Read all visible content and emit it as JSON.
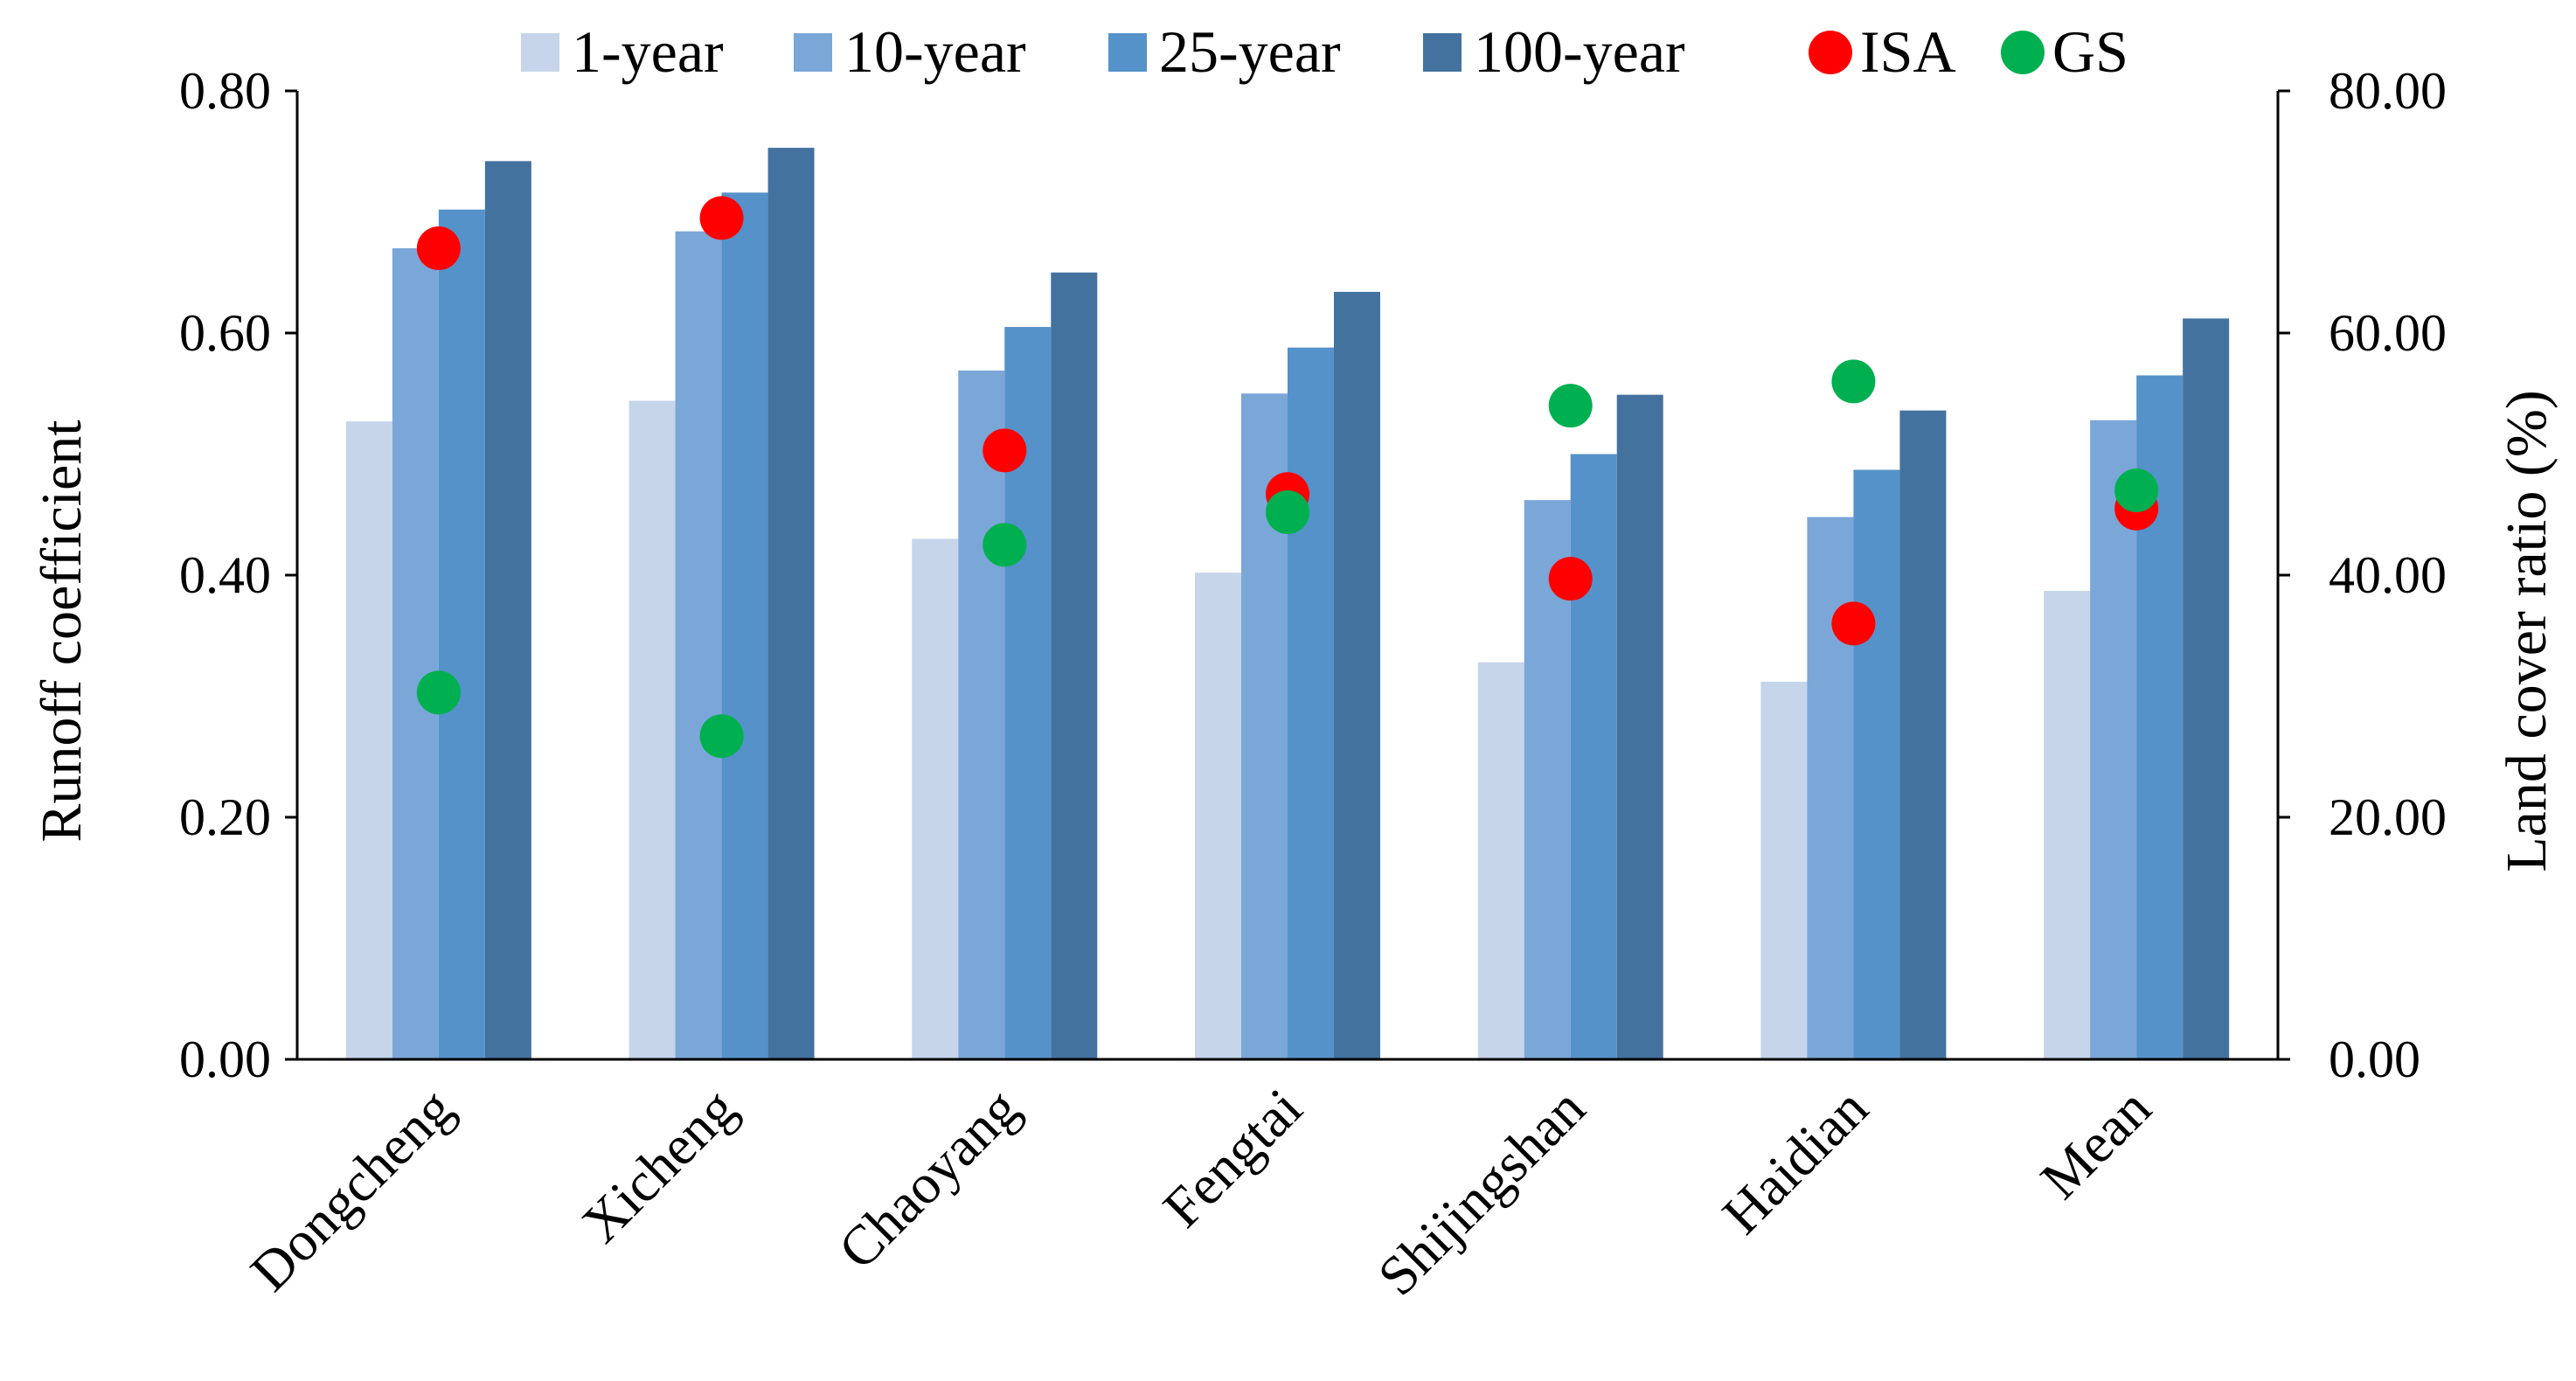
{
  "chart_data": {
    "type": "bar",
    "categories": [
      "Dongcheng",
      "Xicheng",
      "Chaoyang",
      "Fengtai",
      "Shijingshan",
      "Haidian",
      "Mean"
    ],
    "series": [
      {
        "name": "1-year",
        "axis": "left",
        "color": "#c6d5ea",
        "values": [
          0.527,
          0.544,
          0.43,
          0.402,
          0.328,
          0.312,
          0.387
        ]
      },
      {
        "name": "10-year",
        "axis": "left",
        "color": "#7ba6d8",
        "values": [
          0.67,
          0.684,
          0.569,
          0.55,
          0.462,
          0.448,
          0.528
        ]
      },
      {
        "name": "25-year",
        "axis": "left",
        "color": "#5592c9",
        "values": [
          0.702,
          0.716,
          0.605,
          0.588,
          0.5,
          0.487,
          0.565
        ]
      },
      {
        "name": "100-year",
        "axis": "left",
        "color": "#44729f",
        "values": [
          0.742,
          0.753,
          0.65,
          0.634,
          0.549,
          0.536,
          0.612
        ]
      }
    ],
    "markers": [
      {
        "name": "ISA",
        "axis": "right",
        "color": "#ff0000",
        "values": [
          67.0,
          69.5,
          50.3,
          46.7,
          39.7,
          36.0,
          45.5
        ]
      },
      {
        "name": "GS",
        "axis": "right",
        "color": "#00b050",
        "values": [
          30.3,
          26.7,
          42.5,
          45.2,
          54.0,
          56.0,
          47.0
        ]
      }
    ],
    "left_axis": {
      "label": "Runoff coefficient",
      "ylim": [
        0,
        0.8
      ],
      "ticks": [
        "0.00",
        "0.20",
        "0.40",
        "0.60",
        "0.80"
      ]
    },
    "right_axis": {
      "label": "Land cover ratio (%)",
      "ylim": [
        0,
        80
      ],
      "ticks": [
        "0.00",
        "20.00",
        "40.00",
        "60.00",
        "80.00"
      ]
    },
    "legend": {
      "placement": "top-center",
      "entries": [
        "1-year",
        "10-year",
        "25-year",
        "100-year",
        "ISA",
        "GS"
      ]
    },
    "grid": false
  }
}
